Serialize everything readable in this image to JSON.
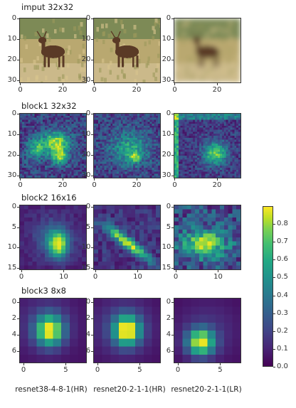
{
  "rows": [
    {
      "title": "imput 32x32",
      "kind": "photo",
      "yticks": [
        "0",
        "10",
        "20",
        "30"
      ],
      "xticks": [
        "0",
        "20"
      ]
    },
    {
      "title": "block1 32x32",
      "kind": "map32",
      "yticks": [
        "0",
        "10",
        "20",
        "30"
      ],
      "xticks": [
        "0",
        "20"
      ]
    },
    {
      "title": "block2 16x16",
      "kind": "map16",
      "yticks": [
        "0",
        "5",
        "10",
        "15"
      ],
      "xticks": [
        "0",
        "10"
      ]
    },
    {
      "title": "block3 8x8",
      "kind": "map8",
      "yticks": [
        "0",
        "2",
        "4",
        "6"
      ],
      "xticks": [
        "0",
        "5"
      ]
    }
  ],
  "columns": [
    {
      "caption": "resnet38-4-8-1(HR)"
    },
    {
      "caption": "resnet20-2-1-1(HR)"
    },
    {
      "caption": "resnet20-2-1-1(LR)"
    }
  ],
  "colorbar": {
    "ticks": [
      "0.8",
      "0.7",
      "0.6",
      "0.5",
      "0.4",
      "0.3",
      "0.2",
      "0.1",
      "0.0"
    ],
    "colormap": "viridis",
    "colors": [
      "#440154",
      "#482475",
      "#414487",
      "#355f8d",
      "#2a788e",
      "#21918c",
      "#22a884",
      "#44bf70",
      "#7ad151",
      "#bddf26",
      "#fde725"
    ]
  },
  "colors": {
    "photo_grass": "#b9a870",
    "photo_deer": "#5a3a26"
  }
}
